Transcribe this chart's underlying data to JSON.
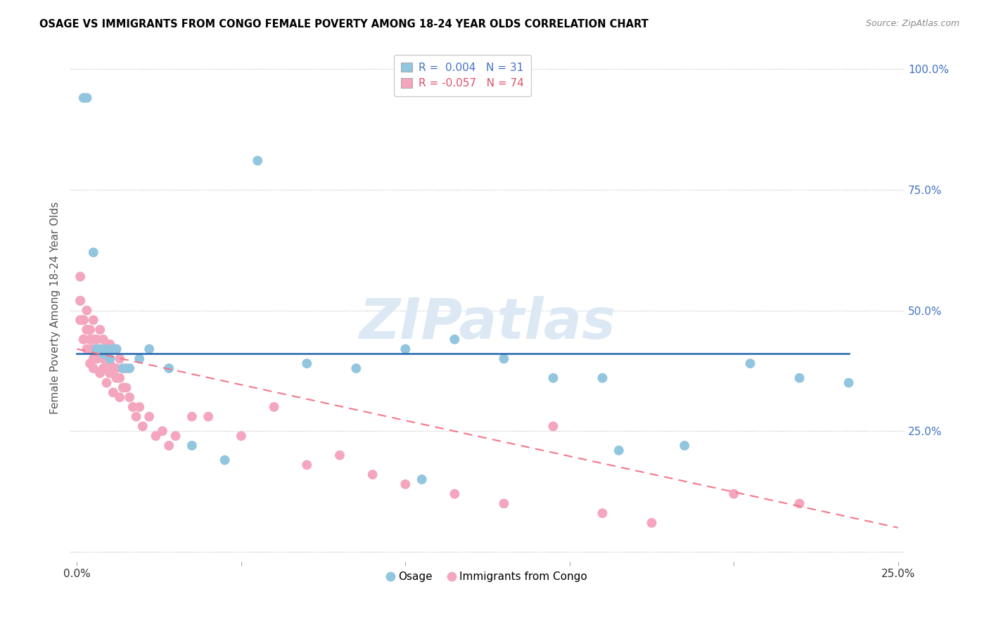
{
  "title": "OSAGE VS IMMIGRANTS FROM CONGO FEMALE POVERTY AMONG 18-24 YEAR OLDS CORRELATION CHART",
  "source": "Source: ZipAtlas.com",
  "ylabel": "Female Poverty Among 18-24 Year Olds",
  "osage_color": "#92c5de",
  "congo_color": "#f4a6be",
  "trend_osage_color": "#2166ac",
  "trend_congo_color": "#f4778a",
  "watermark_color": "#dce9f5",
  "xlim": [
    0.0,
    0.25
  ],
  "ylim": [
    0.0,
    1.0
  ],
  "osage_x": [
    0.002,
    0.003,
    0.005,
    0.006,
    0.007,
    0.008,
    0.009,
    0.01,
    0.011,
    0.012,
    0.014,
    0.016,
    0.019,
    0.022,
    0.028,
    0.035,
    0.045,
    0.055,
    0.07,
    0.085,
    0.1,
    0.115,
    0.13,
    0.145,
    0.165,
    0.185,
    0.205,
    0.22,
    0.235,
    0.105,
    0.16
  ],
  "osage_y": [
    0.94,
    0.94,
    0.62,
    0.42,
    0.42,
    0.41,
    0.42,
    0.4,
    0.42,
    0.42,
    0.38,
    0.38,
    0.4,
    0.42,
    0.38,
    0.22,
    0.19,
    0.81,
    0.39,
    0.38,
    0.42,
    0.44,
    0.4,
    0.36,
    0.21,
    0.22,
    0.39,
    0.36,
    0.35,
    0.15,
    0.36
  ],
  "congo_x": [
    0.001,
    0.001,
    0.002,
    0.002,
    0.003,
    0.003,
    0.004,
    0.004,
    0.005,
    0.005,
    0.005,
    0.006,
    0.006,
    0.007,
    0.007,
    0.008,
    0.008,
    0.009,
    0.009,
    0.01,
    0.01,
    0.011,
    0.011,
    0.012,
    0.012,
    0.013,
    0.013,
    0.014,
    0.014,
    0.015,
    0.015,
    0.001,
    0.001,
    0.002,
    0.002,
    0.003,
    0.003,
    0.004,
    0.004,
    0.005,
    0.005,
    0.006,
    0.007,
    0.008,
    0.009,
    0.01,
    0.011,
    0.012,
    0.013,
    0.016,
    0.017,
    0.018,
    0.019,
    0.02,
    0.022,
    0.024,
    0.026,
    0.028,
    0.03,
    0.035,
    0.04,
    0.05,
    0.06,
    0.07,
    0.08,
    0.09,
    0.1,
    0.115,
    0.13,
    0.145,
    0.16,
    0.175,
    0.2,
    0.22
  ],
  "congo_y": [
    0.57,
    0.52,
    0.48,
    0.44,
    0.5,
    0.46,
    0.46,
    0.42,
    0.48,
    0.44,
    0.4,
    0.44,
    0.4,
    0.46,
    0.41,
    0.44,
    0.4,
    0.43,
    0.38,
    0.43,
    0.39,
    0.42,
    0.38,
    0.42,
    0.38,
    0.4,
    0.36,
    0.38,
    0.34,
    0.38,
    0.34,
    0.52,
    0.48,
    0.48,
    0.44,
    0.46,
    0.42,
    0.44,
    0.39,
    0.42,
    0.38,
    0.4,
    0.37,
    0.38,
    0.35,
    0.37,
    0.33,
    0.36,
    0.32,
    0.32,
    0.3,
    0.28,
    0.3,
    0.26,
    0.28,
    0.24,
    0.25,
    0.22,
    0.24,
    0.28,
    0.28,
    0.24,
    0.3,
    0.18,
    0.2,
    0.16,
    0.14,
    0.12,
    0.1,
    0.26,
    0.08,
    0.06,
    0.12,
    0.1
  ],
  "osage_trend_x": [
    0.0,
    0.235
  ],
  "osage_trend_y": [
    0.41,
    0.41
  ],
  "congo_trend_x": [
    0.0,
    0.25
  ],
  "congo_trend_y": [
    0.42,
    0.05
  ]
}
